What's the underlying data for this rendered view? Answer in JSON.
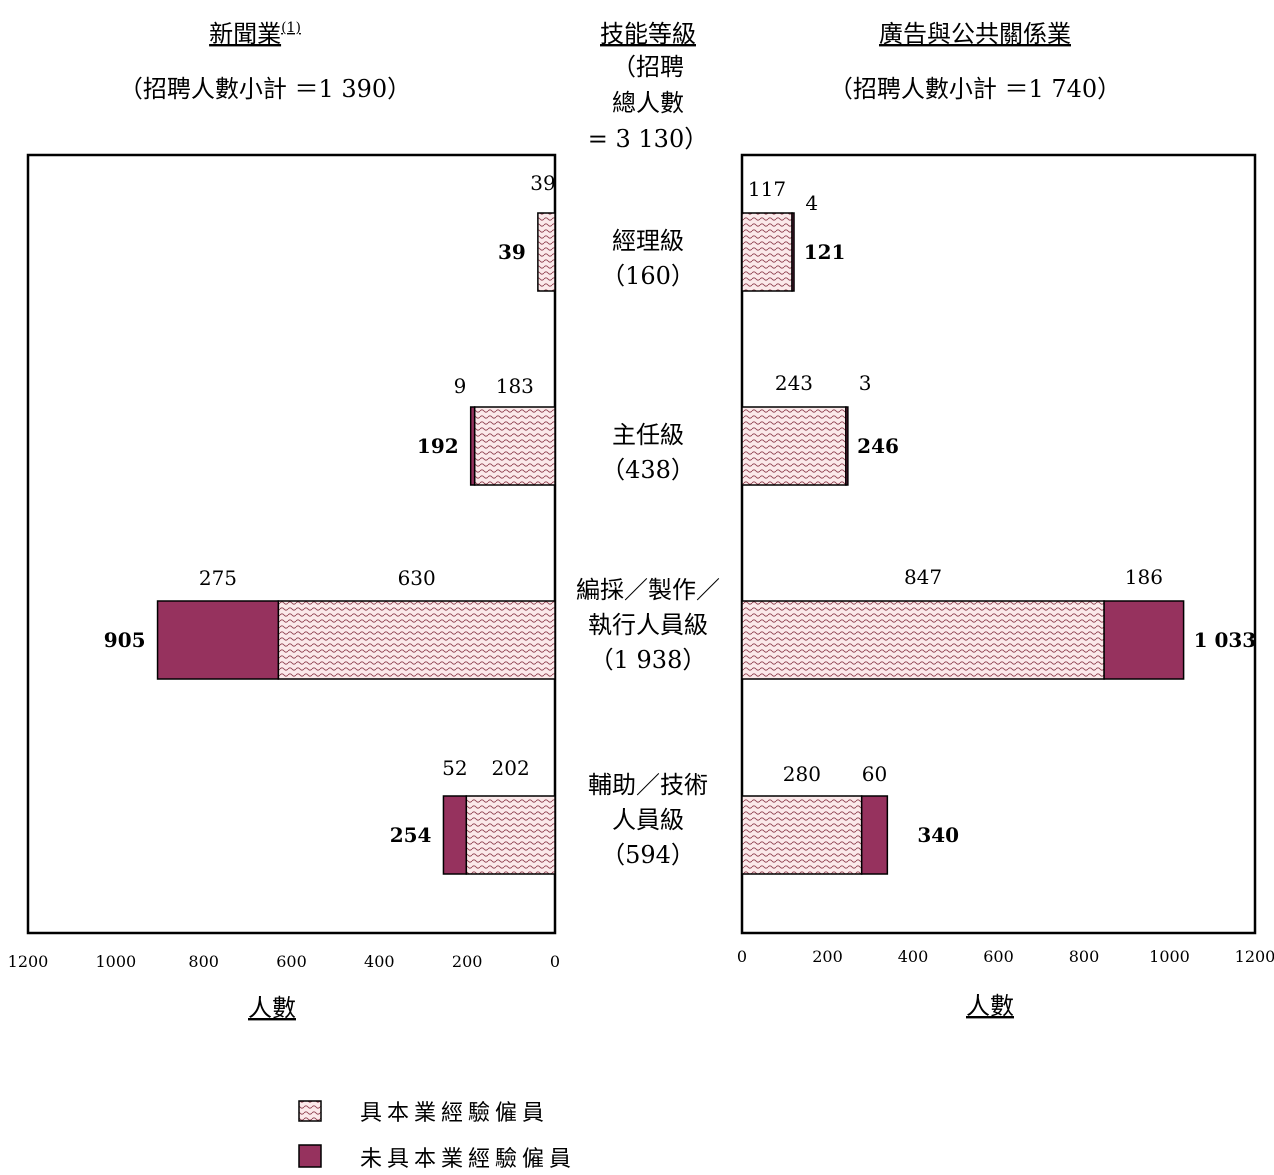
{
  "colors": {
    "experienced_fill": "#fbe9ea",
    "experienced_wave": "#8b3a4a",
    "inexperienced_fill": "#96325e",
    "frame": "#000000"
  },
  "center": {
    "title": "技能等級",
    "total_lines": [
      "（招聘",
      "總人數",
      "= 3 130）"
    ]
  },
  "legend": {
    "experienced_label": "具本業經驗僱員",
    "inexperienced_label": "未具本業經驗僱員"
  },
  "chart_data": [
    {
      "type": "bar",
      "orientation": "horizontal",
      "title": "新聞業",
      "title_superscript": "(1)",
      "subtitle": "（招聘人數小計 ＝1 390）",
      "xlabel": "人數",
      "xlim": [
        1200,
        0
      ],
      "x_ticks": [
        "1200",
        "1000",
        "800",
        "600",
        "400",
        "200",
        "0"
      ],
      "categories": [
        "經理級",
        "主任級",
        "編採／製作／執行人員級",
        "輔助／技術人員級"
      ],
      "series": [
        {
          "name": "具本業經驗僱員",
          "values": [
            39,
            183,
            630,
            202
          ],
          "labels": [
            "39",
            "183",
            "630",
            "202"
          ]
        },
        {
          "name": "未具本業經驗僱員",
          "values": [
            0,
            9,
            275,
            52
          ],
          "labels": [
            "",
            "9",
            "275",
            "52"
          ]
        }
      ],
      "totals": [
        "39",
        "192",
        "905",
        "254"
      ]
    },
    {
      "type": "bar",
      "orientation": "horizontal",
      "title": "廣告與公共關係業",
      "subtitle": "（招聘人數小計 ＝1 740）",
      "xlabel": "人數",
      "xlim": [
        0,
        1200
      ],
      "x_ticks": [
        "0",
        "200",
        "400",
        "600",
        "800",
        "1000",
        "1200"
      ],
      "categories": [
        "經理級",
        "主任級",
        "編採／製作／執行人員級",
        "輔助／技術人員級"
      ],
      "series": [
        {
          "name": "具本業經驗僱員",
          "values": [
            117,
            243,
            847,
            280
          ],
          "labels": [
            "117",
            "243",
            "847",
            "280"
          ]
        },
        {
          "name": "未具本業經驗僱員",
          "values": [
            4,
            3,
            186,
            60
          ],
          "labels": [
            "4",
            "3",
            "186",
            "60"
          ]
        }
      ],
      "totals": [
        "121",
        "246",
        "1 033",
        "340"
      ]
    }
  ],
  "category_labels": [
    {
      "lines": [
        "經理級",
        "（160）"
      ]
    },
    {
      "lines": [
        "主任級",
        "（438）"
      ]
    },
    {
      "lines": [
        "編採／製作／",
        "執行人員級",
        "（1 938）"
      ]
    },
    {
      "lines": [
        "輔助／技術",
        "人員級",
        "（594）"
      ]
    }
  ]
}
